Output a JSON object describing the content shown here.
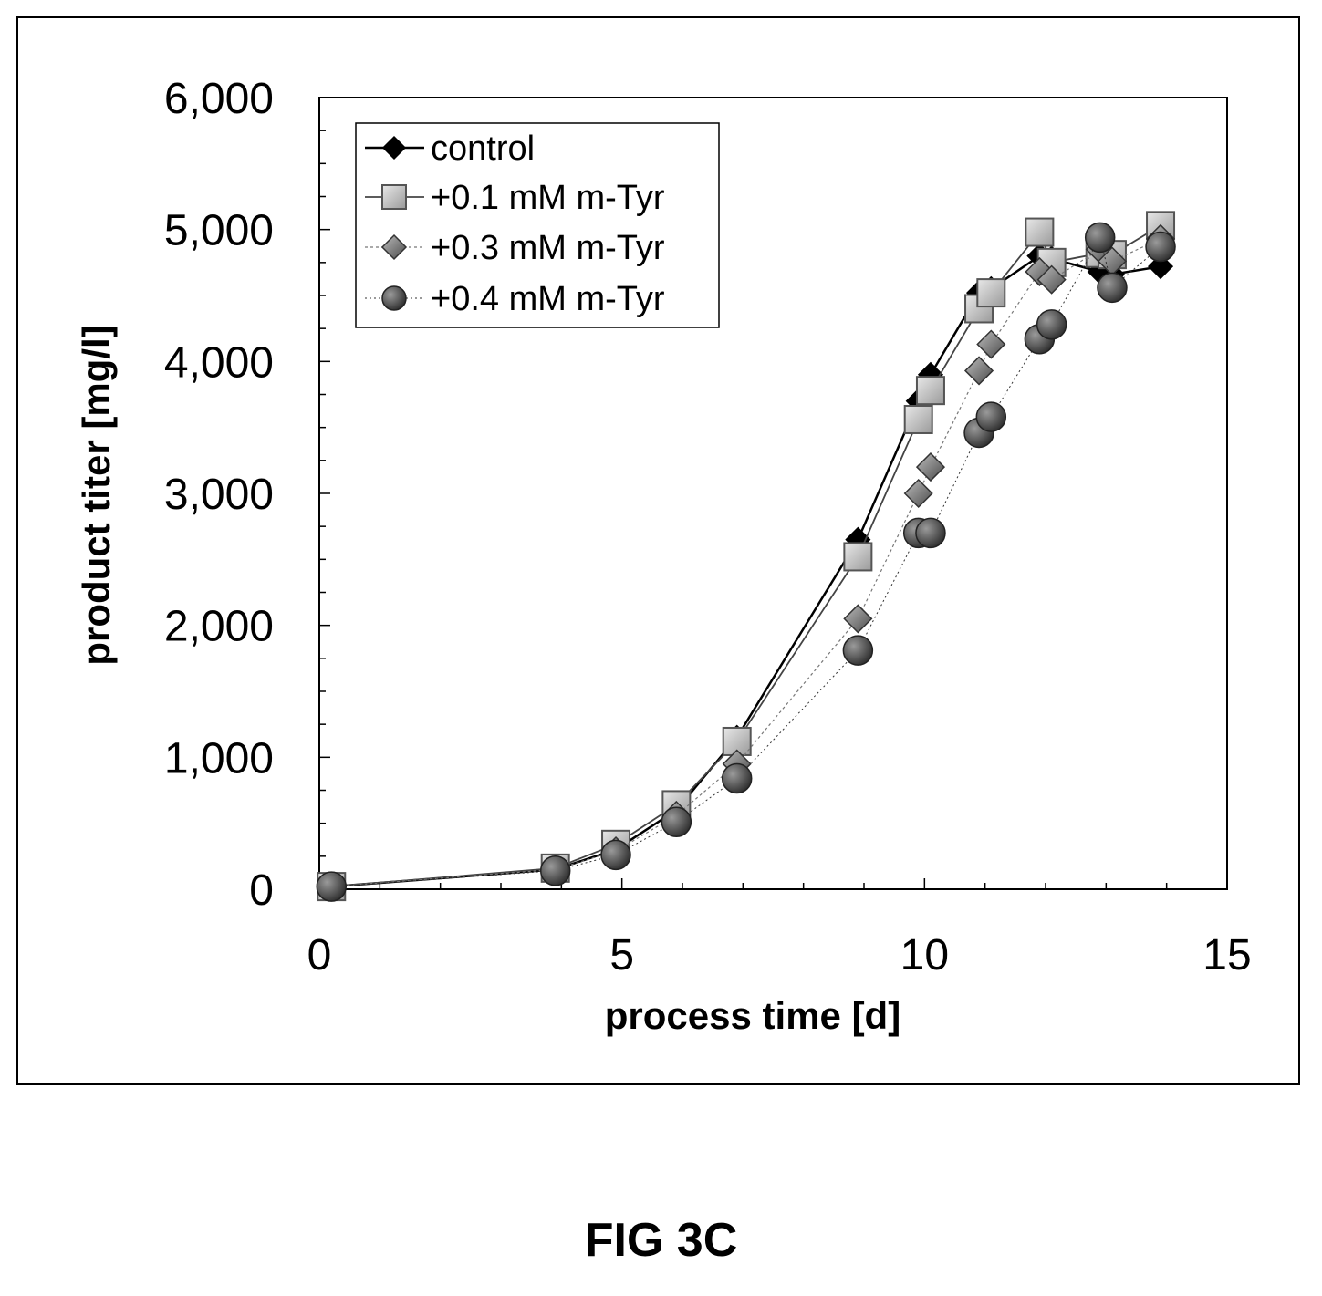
{
  "figure": {
    "label": "FIG 3C"
  },
  "chart_data": {
    "type": "line",
    "xlabel": "process time [d]",
    "ylabel": "product titer [mg/l]",
    "xlim": [
      0,
      15
    ],
    "ylim": [
      0,
      6000
    ],
    "x_ticks": [
      0,
      5,
      10,
      15
    ],
    "y_ticks": [
      0,
      1000,
      2000,
      3000,
      4000,
      5000,
      6000
    ],
    "y_tick_labels": [
      "0",
      "1,000",
      "2,000",
      "3,000",
      "4,000",
      "5,000",
      "6,000"
    ],
    "grid": false,
    "legend_position": "top-left",
    "series": [
      {
        "name": "control",
        "marker": "diamond",
        "color": "#000000",
        "x": [
          0.2,
          3.9,
          4.9,
          5.9,
          6.9,
          8.9,
          9.9,
          10.1,
          10.9,
          11.1,
          11.9,
          12.1,
          12.9,
          13.1,
          13.9
        ],
        "y": [
          20,
          150,
          300,
          600,
          1150,
          2650,
          3700,
          3900,
          4520,
          4550,
          4800,
          4780,
          4680,
          4660,
          4720
        ]
      },
      {
        "name": "+0.1 mM m-Tyr",
        "marker": "square",
        "color": "#c0c0c0",
        "x": [
          0.2,
          3.9,
          4.9,
          5.9,
          6.9,
          8.9,
          9.9,
          10.1,
          10.9,
          11.1,
          11.9,
          12.1,
          12.9,
          13.1,
          13.9
        ],
        "y": [
          20,
          160,
          340,
          640,
          1120,
          2520,
          3560,
          3780,
          4400,
          4520,
          4980,
          4750,
          4820,
          4810,
          5030
        ]
      },
      {
        "name": "+0.3 mM m-Tyr",
        "marker": "diamond",
        "color": "#808080",
        "x": [
          0.2,
          3.9,
          4.9,
          5.9,
          6.9,
          8.9,
          9.9,
          10.1,
          10.9,
          11.1,
          11.9,
          12.1,
          12.9,
          13.1,
          13.9
        ],
        "y": [
          20,
          150,
          290,
          560,
          950,
          2050,
          3000,
          3200,
          3930,
          4130,
          4680,
          4620,
          4850,
          4760,
          4930
        ]
      },
      {
        "name": "+0.4 mM m-Tyr",
        "marker": "circle",
        "color": "#505050",
        "x": [
          0.2,
          3.9,
          4.9,
          5.9,
          6.9,
          8.9,
          9.9,
          10.1,
          10.9,
          11.1,
          11.9,
          12.1,
          12.9,
          13.1,
          13.9
        ],
        "y": [
          20,
          140,
          260,
          510,
          840,
          1810,
          2700,
          2700,
          3460,
          3580,
          4170,
          4280,
          4940,
          4560,
          4870
        ]
      }
    ]
  }
}
